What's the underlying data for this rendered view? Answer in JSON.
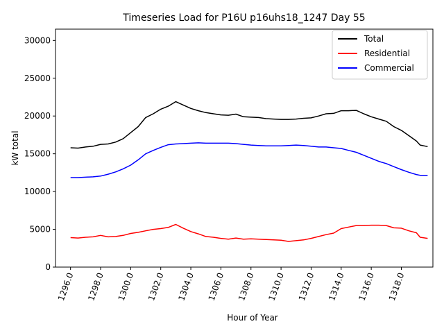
{
  "chart_data": {
    "type": "line",
    "title": "Timeseries Load for P16U p16uhs18_1247  Day 55",
    "xlabel": "Hour of Year",
    "ylabel": "kW total",
    "xlim": [
      1295.0,
      1320.1
    ],
    "ylim": [
      0,
      31500
    ],
    "xticks": [
      1296,
      1298,
      1300,
      1302,
      1304,
      1306,
      1308,
      1310,
      1312,
      1314,
      1316,
      1318
    ],
    "xtick_labels": [
      "1296.0",
      "1298.0",
      "1300.0",
      "1302.0",
      "1304.0",
      "1306.0",
      "1308.0",
      "1310.0",
      "1312.0",
      "1314.0",
      "1316.0",
      "1318.0"
    ],
    "yticks": [
      0,
      5000,
      10000,
      15000,
      20000,
      25000,
      30000
    ],
    "ytick_labels": [
      "0",
      "5000",
      "10000",
      "15000",
      "20000",
      "25000",
      "30000"
    ],
    "legend_position": "top-right",
    "x": [
      1296,
      1296.5,
      1297,
      1297.5,
      1298,
      1298.5,
      1299,
      1299.5,
      1300,
      1300.5,
      1301,
      1301.5,
      1302,
      1302.5,
      1303,
      1303.5,
      1304,
      1304.5,
      1305,
      1305.5,
      1306,
      1306.5,
      1307,
      1307.5,
      1308,
      1308.5,
      1309,
      1309.5,
      1310,
      1310.5,
      1311,
      1311.5,
      1312,
      1312.5,
      1313,
      1313.5,
      1314,
      1314.5,
      1315,
      1315.5,
      1316,
      1316.5,
      1317,
      1317.5,
      1318,
      1318.5,
      1319,
      1319.25,
      1319.75
    ],
    "series": [
      {
        "name": "Total",
        "color": "#000000",
        "values": [
          15800,
          15750,
          15900,
          16000,
          16250,
          16300,
          16550,
          17000,
          17800,
          18600,
          19800,
          20300,
          20900,
          21300,
          21900,
          21450,
          21000,
          20700,
          20450,
          20300,
          20150,
          20100,
          20250,
          19900,
          19850,
          19800,
          19650,
          19600,
          19550,
          19550,
          19600,
          19700,
          19750,
          20000,
          20300,
          20350,
          20700,
          20700,
          20750,
          20300,
          19900,
          19600,
          19300,
          18600,
          18100,
          17400,
          16700,
          16150,
          15950
        ]
      },
      {
        "name": "Residential",
        "color": "#ff0000",
        "values": [
          3900,
          3850,
          3950,
          4000,
          4200,
          4000,
          4050,
          4200,
          4450,
          4600,
          4800,
          5000,
          5100,
          5250,
          5650,
          5150,
          4700,
          4400,
          4050,
          3950,
          3800,
          3700,
          3850,
          3700,
          3750,
          3700,
          3650,
          3600,
          3550,
          3400,
          3500,
          3600,
          3800,
          4050,
          4300,
          4500,
          5100,
          5300,
          5500,
          5500,
          5550,
          5550,
          5500,
          5200,
          5150,
          4800,
          4550,
          3950,
          3800
        ]
      },
      {
        "name": "Commercial",
        "color": "#0000ff",
        "values": [
          11850,
          11850,
          11900,
          11950,
          12050,
          12300,
          12600,
          13000,
          13500,
          14200,
          15000,
          15450,
          15850,
          16200,
          16300,
          16350,
          16400,
          16450,
          16400,
          16400,
          16400,
          16400,
          16350,
          16250,
          16150,
          16100,
          16050,
          16050,
          16050,
          16100,
          16150,
          16100,
          16000,
          15900,
          15900,
          15800,
          15700,
          15450,
          15200,
          14800,
          14400,
          14000,
          13700,
          13300,
          12900,
          12550,
          12250,
          12150,
          12150
        ]
      }
    ]
  }
}
